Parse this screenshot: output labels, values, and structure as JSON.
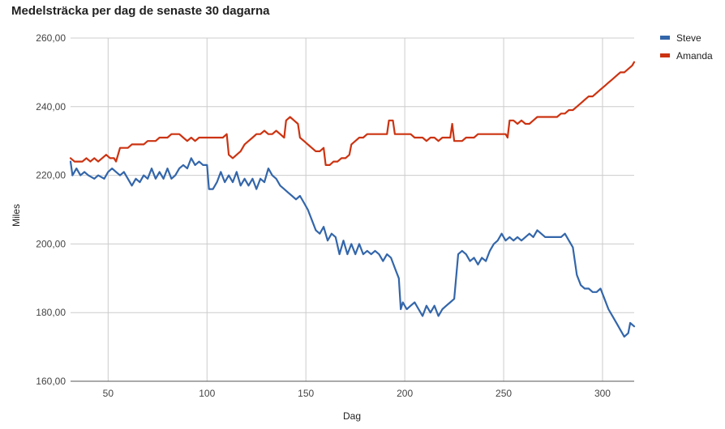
{
  "chart_data": {
    "type": "line",
    "title": "Medelsträcka per dag de senaste 30 dagarna",
    "xlabel": "Dag",
    "ylabel": "Miles",
    "xlim": [
      31,
      316
    ],
    "ylim": [
      160,
      260
    ],
    "x_ticks": [
      50,
      100,
      150,
      200,
      250,
      300
    ],
    "x_tick_labels": [
      "50",
      "100",
      "150",
      "200",
      "250",
      "300"
    ],
    "y_ticks": [
      160,
      180,
      200,
      220,
      240,
      260
    ],
    "y_tick_labels": [
      "160,00",
      "180,00",
      "200,00",
      "220,00",
      "240,00",
      "260,00"
    ],
    "grid": true,
    "legend_position": "right",
    "series": [
      {
        "name": "Steve",
        "color": "#3366aa",
        "points": [
          [
            31,
            224
          ],
          [
            32,
            220
          ],
          [
            34,
            222
          ],
          [
            36,
            220
          ],
          [
            38,
            221
          ],
          [
            40,
            220
          ],
          [
            43,
            219
          ],
          [
            45,
            220
          ],
          [
            48,
            219
          ],
          [
            50,
            221
          ],
          [
            52,
            222
          ],
          [
            54,
            221
          ],
          [
            56,
            220
          ],
          [
            58,
            221
          ],
          [
            60,
            219
          ],
          [
            62,
            217
          ],
          [
            64,
            219
          ],
          [
            66,
            218
          ],
          [
            68,
            220
          ],
          [
            70,
            219
          ],
          [
            72,
            222
          ],
          [
            74,
            219
          ],
          [
            76,
            221
          ],
          [
            78,
            219
          ],
          [
            80,
            222
          ],
          [
            82,
            219
          ],
          [
            84,
            220
          ],
          [
            86,
            222
          ],
          [
            88,
            223
          ],
          [
            90,
            222
          ],
          [
            92,
            225
          ],
          [
            94,
            223
          ],
          [
            96,
            224
          ],
          [
            98,
            223
          ],
          [
            100,
            223
          ],
          [
            101,
            216
          ],
          [
            103,
            216
          ],
          [
            105,
            218
          ],
          [
            107,
            221
          ],
          [
            109,
            218
          ],
          [
            111,
            220
          ],
          [
            113,
            218
          ],
          [
            115,
            221
          ],
          [
            117,
            217
          ],
          [
            119,
            219
          ],
          [
            121,
            217
          ],
          [
            123,
            219
          ],
          [
            125,
            216
          ],
          [
            127,
            219
          ],
          [
            129,
            218
          ],
          [
            131,
            222
          ],
          [
            133,
            220
          ],
          [
            135,
            219
          ],
          [
            137,
            217
          ],
          [
            139,
            216
          ],
          [
            141,
            215
          ],
          [
            143,
            214
          ],
          [
            145,
            213
          ],
          [
            147,
            214
          ],
          [
            149,
            212
          ],
          [
            151,
            210
          ],
          [
            153,
            207
          ],
          [
            155,
            204
          ],
          [
            157,
            203
          ],
          [
            159,
            205
          ],
          [
            161,
            201
          ],
          [
            163,
            203
          ],
          [
            165,
            202
          ],
          [
            167,
            197
          ],
          [
            169,
            201
          ],
          [
            171,
            197
          ],
          [
            173,
            200
          ],
          [
            175,
            197
          ],
          [
            177,
            200
          ],
          [
            179,
            197
          ],
          [
            181,
            198
          ],
          [
            183,
            197
          ],
          [
            185,
            198
          ],
          [
            187,
            197
          ],
          [
            189,
            195
          ],
          [
            191,
            197
          ],
          [
            193,
            196
          ],
          [
            195,
            193
          ],
          [
            197,
            190
          ],
          [
            198,
            181
          ],
          [
            199,
            183
          ],
          [
            201,
            181
          ],
          [
            203,
            182
          ],
          [
            205,
            183
          ],
          [
            207,
            181
          ],
          [
            209,
            179
          ],
          [
            211,
            182
          ],
          [
            213,
            180
          ],
          [
            215,
            182
          ],
          [
            217,
            179
          ],
          [
            219,
            181
          ],
          [
            221,
            182
          ],
          [
            223,
            183
          ],
          [
            225,
            184
          ],
          [
            227,
            197
          ],
          [
            229,
            198
          ],
          [
            231,
            197
          ],
          [
            233,
            195
          ],
          [
            235,
            196
          ],
          [
            237,
            194
          ],
          [
            239,
            196
          ],
          [
            241,
            195
          ],
          [
            243,
            198
          ],
          [
            245,
            200
          ],
          [
            247,
            201
          ],
          [
            249,
            203
          ],
          [
            251,
            201
          ],
          [
            253,
            202
          ],
          [
            255,
            201
          ],
          [
            257,
            202
          ],
          [
            259,
            201
          ],
          [
            261,
            202
          ],
          [
            263,
            203
          ],
          [
            265,
            202
          ],
          [
            267,
            204
          ],
          [
            269,
            203
          ],
          [
            271,
            202
          ],
          [
            273,
            202
          ],
          [
            275,
            202
          ],
          [
            277,
            202
          ],
          [
            279,
            202
          ],
          [
            281,
            203
          ],
          [
            283,
            201
          ],
          [
            285,
            199
          ],
          [
            287,
            191
          ],
          [
            289,
            188
          ],
          [
            291,
            187
          ],
          [
            293,
            187
          ],
          [
            295,
            186
          ],
          [
            297,
            186
          ],
          [
            299,
            187
          ],
          [
            301,
            184
          ],
          [
            303,
            181
          ],
          [
            305,
            179
          ],
          [
            307,
            177
          ],
          [
            309,
            175
          ],
          [
            311,
            173
          ],
          [
            313,
            174
          ],
          [
            314,
            177
          ],
          [
            316,
            176
          ]
        ]
      },
      {
        "name": "Amanda",
        "color": "#cc3311",
        "points": [
          [
            31,
            225
          ],
          [
            33,
            224
          ],
          [
            35,
            224
          ],
          [
            37,
            224
          ],
          [
            39,
            225
          ],
          [
            41,
            224
          ],
          [
            43,
            225
          ],
          [
            45,
            224
          ],
          [
            47,
            225
          ],
          [
            49,
            226
          ],
          [
            51,
            225
          ],
          [
            53,
            225
          ],
          [
            54,
            224
          ],
          [
            56,
            228
          ],
          [
            58,
            228
          ],
          [
            60,
            228
          ],
          [
            62,
            229
          ],
          [
            64,
            229
          ],
          [
            66,
            229
          ],
          [
            68,
            229
          ],
          [
            70,
            230
          ],
          [
            72,
            230
          ],
          [
            74,
            230
          ],
          [
            76,
            231
          ],
          [
            78,
            231
          ],
          [
            80,
            231
          ],
          [
            82,
            232
          ],
          [
            84,
            232
          ],
          [
            86,
            232
          ],
          [
            88,
            231
          ],
          [
            90,
            230
          ],
          [
            92,
            231
          ],
          [
            94,
            230
          ],
          [
            96,
            231
          ],
          [
            98,
            231
          ],
          [
            100,
            231
          ],
          [
            102,
            231
          ],
          [
            104,
            231
          ],
          [
            106,
            231
          ],
          [
            108,
            231
          ],
          [
            110,
            232
          ],
          [
            111,
            226
          ],
          [
            113,
            225
          ],
          [
            115,
            226
          ],
          [
            117,
            227
          ],
          [
            119,
            229
          ],
          [
            121,
            230
          ],
          [
            123,
            231
          ],
          [
            125,
            232
          ],
          [
            127,
            232
          ],
          [
            129,
            233
          ],
          [
            131,
            232
          ],
          [
            133,
            232
          ],
          [
            135,
            233
          ],
          [
            137,
            232
          ],
          [
            139,
            231
          ],
          [
            140,
            236
          ],
          [
            142,
            237
          ],
          [
            144,
            236
          ],
          [
            146,
            235
          ],
          [
            147,
            231
          ],
          [
            149,
            230
          ],
          [
            151,
            229
          ],
          [
            153,
            228
          ],
          [
            155,
            227
          ],
          [
            157,
            227
          ],
          [
            159,
            228
          ],
          [
            160,
            223
          ],
          [
            162,
            223
          ],
          [
            164,
            224
          ],
          [
            166,
            224
          ],
          [
            168,
            225
          ],
          [
            170,
            225
          ],
          [
            172,
            226
          ],
          [
            173,
            229
          ],
          [
            175,
            230
          ],
          [
            177,
            231
          ],
          [
            179,
            231
          ],
          [
            181,
            232
          ],
          [
            183,
            232
          ],
          [
            185,
            232
          ],
          [
            187,
            232
          ],
          [
            189,
            232
          ],
          [
            191,
            232
          ],
          [
            192,
            236
          ],
          [
            194,
            236
          ],
          [
            195,
            232
          ],
          [
            197,
            232
          ],
          [
            199,
            232
          ],
          [
            201,
            232
          ],
          [
            203,
            232
          ],
          [
            205,
            231
          ],
          [
            207,
            231
          ],
          [
            209,
            231
          ],
          [
            211,
            230
          ],
          [
            213,
            231
          ],
          [
            215,
            231
          ],
          [
            217,
            230
          ],
          [
            219,
            231
          ],
          [
            221,
            231
          ],
          [
            223,
            231
          ],
          [
            224,
            235
          ],
          [
            225,
            230
          ],
          [
            227,
            230
          ],
          [
            229,
            230
          ],
          [
            231,
            231
          ],
          [
            233,
            231
          ],
          [
            235,
            231
          ],
          [
            237,
            232
          ],
          [
            239,
            232
          ],
          [
            241,
            232
          ],
          [
            243,
            232
          ],
          [
            245,
            232
          ],
          [
            247,
            232
          ],
          [
            249,
            232
          ],
          [
            251,
            232
          ],
          [
            252,
            231
          ],
          [
            253,
            236
          ],
          [
            255,
            236
          ],
          [
            257,
            235
          ],
          [
            259,
            236
          ],
          [
            261,
            235
          ],
          [
            263,
            235
          ],
          [
            265,
            236
          ],
          [
            267,
            237
          ],
          [
            269,
            237
          ],
          [
            271,
            237
          ],
          [
            273,
            237
          ],
          [
            275,
            237
          ],
          [
            277,
            237
          ],
          [
            279,
            238
          ],
          [
            281,
            238
          ],
          [
            283,
            239
          ],
          [
            285,
            239
          ],
          [
            287,
            240
          ],
          [
            289,
            241
          ],
          [
            291,
            242
          ],
          [
            293,
            243
          ],
          [
            295,
            243
          ],
          [
            297,
            244
          ],
          [
            299,
            245
          ],
          [
            301,
            246
          ],
          [
            303,
            247
          ],
          [
            305,
            248
          ],
          [
            307,
            249
          ],
          [
            309,
            250
          ],
          [
            311,
            250
          ],
          [
            313,
            251
          ],
          [
            315,
            252
          ],
          [
            316,
            253
          ]
        ]
      }
    ]
  }
}
